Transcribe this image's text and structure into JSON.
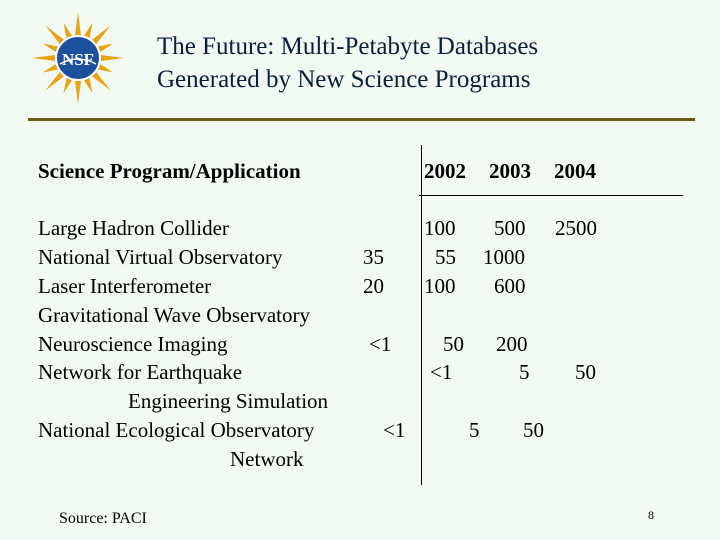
{
  "title": {
    "line1": "The Future: Multi-Petabyte Databases",
    "line2": "Generated by New Science Programs"
  },
  "logo": {
    "text": "NSF",
    "icon": "nsf-logo",
    "colors": {
      "sun": "#e8a311",
      "globe": "#1c4f9c",
      "ring": "#ffffff"
    }
  },
  "table": {
    "header": {
      "program": "Science Program/Application",
      "years": [
        "2002",
        "2003",
        "2004"
      ]
    },
    "rows": [
      {
        "name": "Large Hadron Collider",
        "col1": "",
        "v2002": "100",
        "v2003": "500",
        "v2004": "2500"
      },
      {
        "name": "National Virtual Observatory",
        "col1": "35",
        "v2002": "55",
        "v2003": "1000",
        "v2004": ""
      },
      {
        "name": "Laser Interferometer",
        "col1": "20",
        "v2002": "100",
        "v2003": "600",
        "v2004": ""
      },
      {
        "name": "Gravitational Wave Observatory",
        "col1": "",
        "v2002": "",
        "v2003": "",
        "v2004": ""
      },
      {
        "name": "Neuroscience Imaging",
        "col1": "<1",
        "v2002": "50",
        "v2003": "200",
        "v2004": ""
      },
      {
        "name": "Network for Earthquake",
        "col1": "",
        "v2002": "<1",
        "v2003": "5",
        "v2004": "50"
      },
      {
        "name": "Engineering Simulation",
        "col1": "",
        "v2002": "",
        "v2003": "",
        "v2004": ""
      },
      {
        "name": "National Ecological Observatory",
        "col1": "<1",
        "v2002": "5",
        "v2003": "50",
        "v2004": ""
      },
      {
        "name": "Network",
        "col1": "",
        "v2002": "",
        "v2003": "",
        "v2004": ""
      }
    ]
  },
  "footer": {
    "source": "Source:  PACI",
    "page": "8"
  },
  "colors": {
    "background": "#f2f8f2",
    "rule": "#6b5a1a",
    "title": "#0b1f3a"
  }
}
